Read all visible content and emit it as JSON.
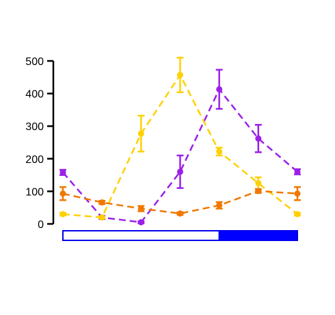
{
  "chart_data": {
    "type": "line",
    "x": [
      1,
      2,
      3,
      4,
      5,
      6,
      7
    ],
    "ylim": [
      0,
      500
    ],
    "yticks": [
      "0",
      "100",
      "200",
      "300",
      "400",
      "500"
    ],
    "grid": false,
    "title": "",
    "xlabel": "",
    "ylabel": "",
    "light_dark_bar": {
      "light": [
        1,
        5
      ],
      "dark": [
        5,
        7
      ]
    },
    "series": [
      {
        "color": "#9B1FE8",
        "values": [
          158,
          20,
          5,
          160,
          413,
          262,
          160
        ],
        "err": [
          8,
          5,
          3,
          50,
          60,
          42,
          8
        ]
      },
      {
        "color": "#FFD000",
        "values": [
          30,
          20,
          277,
          457,
          222,
          125,
          30
        ],
        "err": [
          4,
          3,
          55,
          53,
          12,
          18,
          4
        ]
      },
      {
        "color": "#F07800",
        "values": [
          93,
          66,
          47,
          32,
          57,
          101,
          93
        ],
        "err": [
          20,
          5,
          8,
          4,
          10,
          6,
          20
        ]
      }
    ]
  }
}
